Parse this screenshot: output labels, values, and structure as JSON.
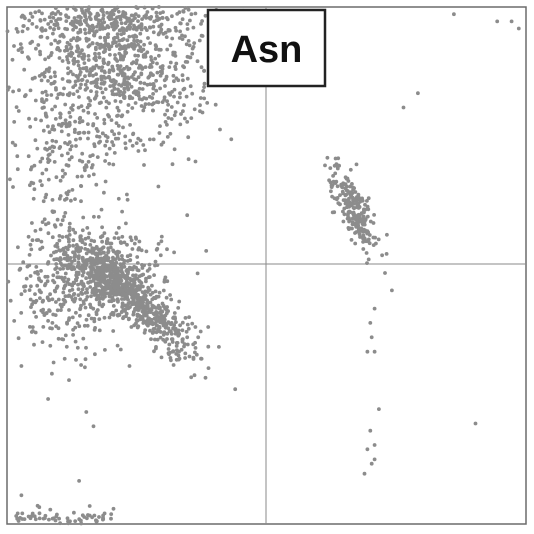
{
  "chart_data": {
    "type": "scatter",
    "title": "Asn",
    "xlabel": "",
    "ylabel": "",
    "xlim": [
      -180,
      180
    ],
    "ylim": [
      -180,
      180
    ],
    "grid": false,
    "center_lines": true,
    "point_color": "#8c8c8c",
    "clusters": [
      {
        "id": "beta-region",
        "center": [
          -105,
          140
        ],
        "spread": [
          30,
          28
        ],
        "count": 900
      },
      {
        "id": "beta-upper-edge",
        "center": [
          -115,
          172
        ],
        "spread": [
          32,
          6
        ],
        "count": 160
      },
      {
        "id": "beta-lower-tail",
        "center": [
          -140,
          78
        ],
        "spread": [
          18,
          25
        ],
        "count": 160
      },
      {
        "id": "alpha-right-dense",
        "center": [
          -95,
          -20
        ],
        "spread": [
          22,
          20
        ],
        "count": 700,
        "corr": -0.85
      },
      {
        "id": "alpha-main",
        "center": [
          -115,
          -5
        ],
        "spread": [
          22,
          15
        ],
        "count": 420
      },
      {
        "id": "alpha-extension",
        "center": [
          -140,
          -25
        ],
        "spread": [
          18,
          22
        ],
        "count": 160
      },
      {
        "id": "left-alpha-region",
        "center": [
          60,
          40
        ],
        "spread": [
          8,
          15
        ],
        "count": 240,
        "corr": -0.8
      },
      {
        "id": "bottom-left-edge",
        "center": [
          -145,
          -175
        ],
        "spread": [
          22,
          3
        ],
        "count": 70
      }
    ],
    "points": [
      [
        -140,
        -65
      ],
      [
        -170,
        -70
      ],
      [
        -95,
        -70
      ],
      [
        -125,
        -102
      ],
      [
        -120,
        -112
      ],
      [
        -130,
        -150
      ],
      [
        -150,
        -170
      ],
      [
        -170,
        -160
      ],
      [
        75,
        -30
      ],
      [
        72,
        -40
      ],
      [
        73,
        -50
      ],
      [
        70,
        -60
      ],
      [
        75,
        -60
      ],
      [
        72,
        -115
      ],
      [
        75,
        -125
      ],
      [
        70,
        -128
      ],
      [
        73,
        -138
      ],
      [
        68,
        -145
      ],
      [
        75,
        -135
      ],
      [
        78,
        -100
      ],
      [
        145,
        -110
      ],
      [
        170,
        170
      ],
      [
        175,
        165
      ],
      [
        130,
        175
      ],
      [
        160,
        170
      ],
      [
        95,
        110
      ],
      [
        105,
        120
      ],
      [
        -175,
        100
      ],
      [
        -172,
        150
      ],
      [
        -165,
        20
      ],
      [
        -170,
        -20
      ],
      [
        -178,
        60
      ],
      [
        -40,
        175
      ],
      [
        -45,
        160
      ],
      [
        -35,
        145
      ],
      [
        -60,
        120
      ],
      [
        -70,
        100
      ],
      [
        -75,
        55
      ],
      [
        -85,
        70
      ],
      [
        -100,
        20
      ],
      [
        -55,
        -50
      ],
      [
        -45,
        -65
      ],
      [
        -65,
        -60
      ],
      [
        -55,
        100
      ],
      [
        -55,
        35
      ]
    ]
  },
  "label": {
    "text": "Asn"
  }
}
